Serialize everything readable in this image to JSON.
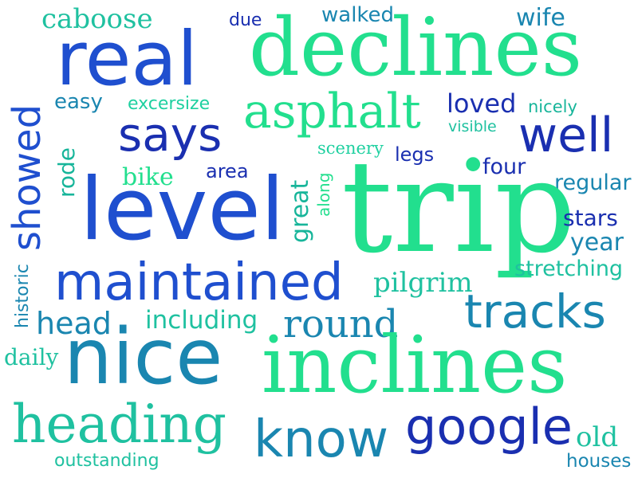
{
  "palette": {
    "navy": "#1a2fb0",
    "royal": "#1f4fcf",
    "blue": "#2268c8",
    "teal": "#1a86b0",
    "seagreen": "#17b59a",
    "mint": "#22df8e"
  },
  "words": [
    {
      "text": "caboose",
      "color": "#1fc1a0"
    },
    {
      "text": "due",
      "color": "#1a2fb0"
    },
    {
      "text": "walked",
      "color": "#1a86b0"
    },
    {
      "text": "wife",
      "color": "#1a86b0"
    },
    {
      "text": "real",
      "color": "#1f4fcf"
    },
    {
      "text": "declines",
      "color": "#22df8e"
    },
    {
      "text": "showed",
      "color": "#1f4fcf"
    },
    {
      "text": "easy",
      "color": "#1a86b0"
    },
    {
      "text": "excersize",
      "color": "#1fd0a0"
    },
    {
      "text": "asphalt",
      "color": "#22df8e"
    },
    {
      "text": "loved",
      "color": "#1a2fb0"
    },
    {
      "text": "nicely",
      "color": "#17b59a"
    },
    {
      "text": "visible",
      "color": "#1fc1a0"
    },
    {
      "text": "says",
      "color": "#1a2fb0"
    },
    {
      "text": "well",
      "color": "#1a2fb0"
    },
    {
      "text": "scenery",
      "color": "#1fd0a0"
    },
    {
      "text": "legs",
      "color": "#1a2fb0"
    },
    {
      "text": "rode",
      "color": "#17b59a"
    },
    {
      "text": "bike",
      "color": "#22df8e"
    },
    {
      "text": "area",
      "color": "#1a2fb0"
    },
    {
      "text": "four",
      "color": "#1a2fb0"
    },
    {
      "text": "regular",
      "color": "#1a86b0"
    },
    {
      "text": "level",
      "color": "#1f4fcf"
    },
    {
      "text": "great",
      "color": "#17b59a"
    },
    {
      "text": "along",
      "color": "#22df8e"
    },
    {
      "text": "trip",
      "color": "#22df8e"
    },
    {
      "text": "stars",
      "color": "#1a2fb0"
    },
    {
      "text": "year",
      "color": "#1a86b0"
    },
    {
      "text": "stretching",
      "color": "#1fc1a0"
    },
    {
      "text": "maintained",
      "color": "#1f4fcf"
    },
    {
      "text": "pilgrim",
      "color": "#1fc1a0"
    },
    {
      "text": "historic",
      "color": "#1a86b0"
    },
    {
      "text": "tracks",
      "color": "#1a86b0"
    },
    {
      "text": "head",
      "color": "#1a86b0"
    },
    {
      "text": "including",
      "color": "#1fc1a0"
    },
    {
      "text": "round",
      "color": "#1a86b0"
    },
    {
      "text": "daily",
      "color": "#1fc1a0"
    },
    {
      "text": "nice",
      "color": "#1a86b0"
    },
    {
      "text": "inclines",
      "color": "#22df8e"
    },
    {
      "text": "heading",
      "color": "#1fc1a0"
    },
    {
      "text": "know",
      "color": "#1a86b0"
    },
    {
      "text": "google",
      "color": "#1a2fb0"
    },
    {
      "text": "old",
      "color": "#1fc1a0"
    },
    {
      "text": "outstanding",
      "color": "#1fc1a0"
    },
    {
      "text": "houses",
      "color": "#1a86b0"
    }
  ]
}
